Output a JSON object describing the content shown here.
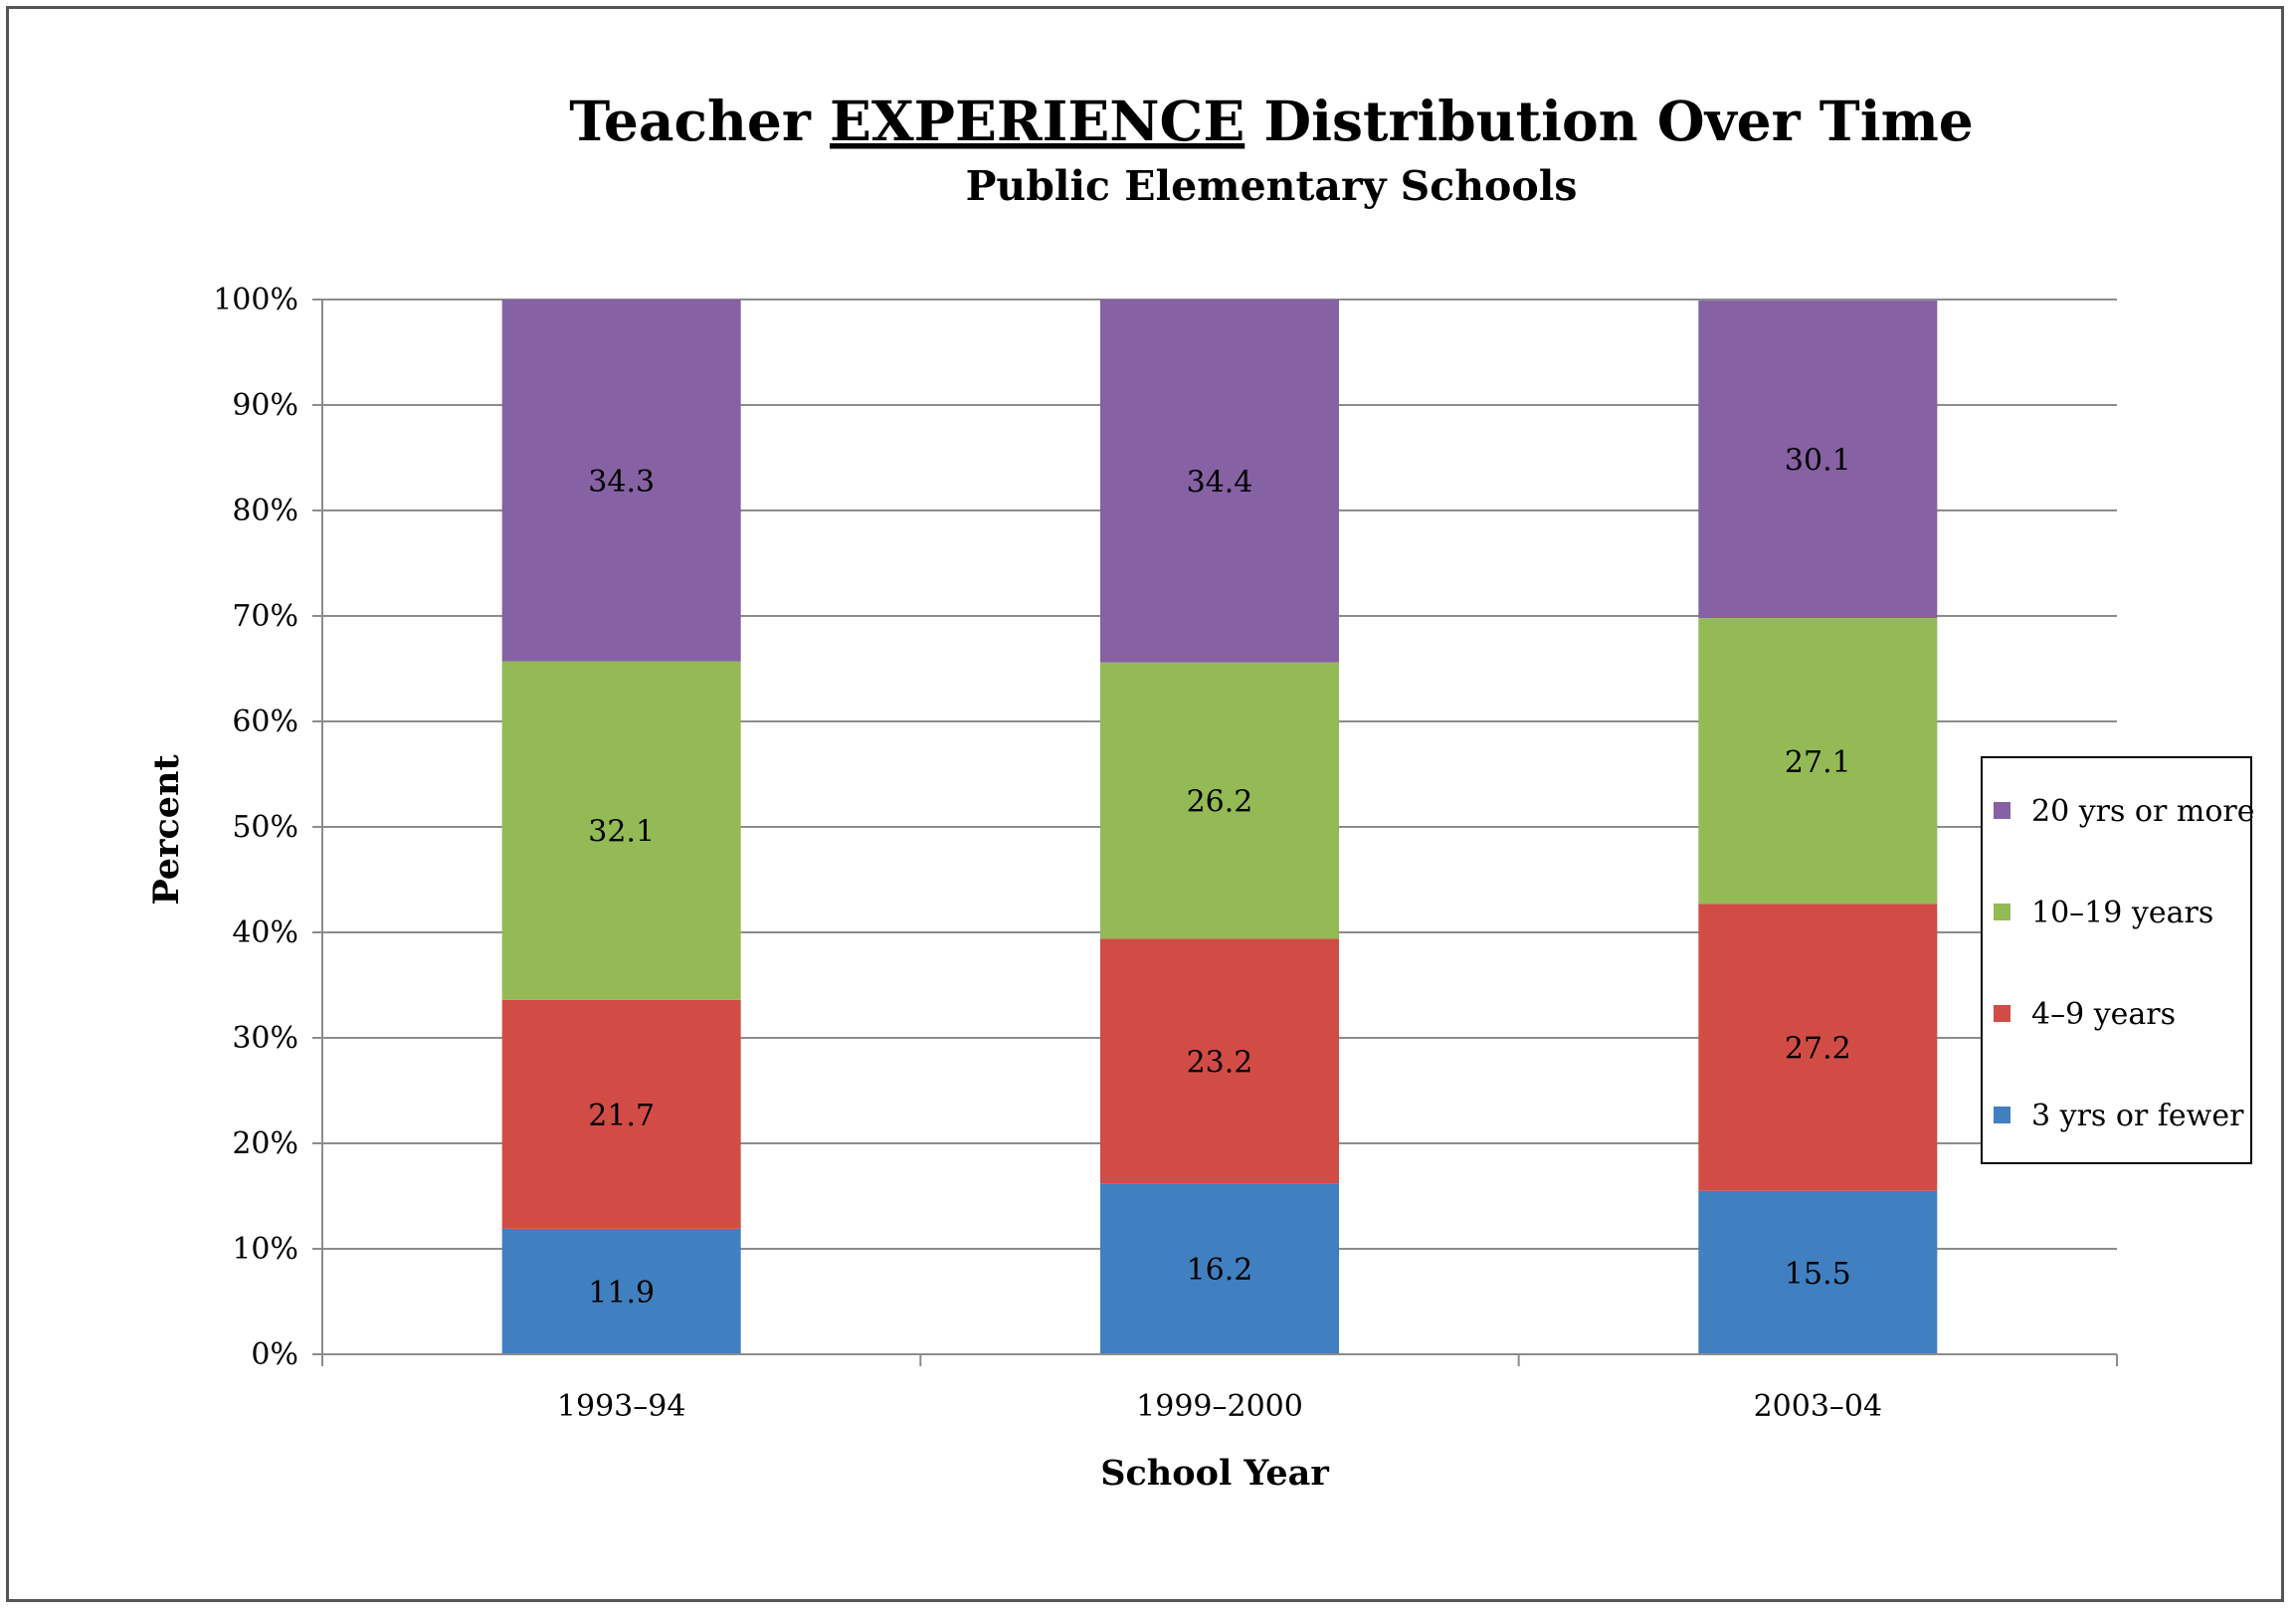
{
  "chart_data": {
    "type": "bar",
    "stacked": true,
    "title_prefix": "Teacher ",
    "title_emphasis": "EXPERIENCE",
    "title_suffix": " Distribution Over Time",
    "subtitle": "Public Elementary Schools",
    "xlabel": "School Year",
    "ylabel": "Percent",
    "categories": [
      "1993–94",
      "1999–2000",
      "2003–04"
    ],
    "ylim": [
      0,
      100
    ],
    "yticks": [
      "0%",
      "10%",
      "20%",
      "30%",
      "40%",
      "50%",
      "60%",
      "70%",
      "80%",
      "90%",
      "100%"
    ],
    "grid": true,
    "legend_position": "right",
    "series": [
      {
        "name": "3 yrs or fewer",
        "color": "#4080C0",
        "values": [
          11.9,
          16.2,
          15.5
        ]
      },
      {
        "name": "4–9 years",
        "color": "#D24C46",
        "values": [
          21.7,
          23.2,
          27.2
        ]
      },
      {
        "name": "10–19 years",
        "color": "#93BA55",
        "values": [
          32.1,
          26.2,
          27.1
        ]
      },
      {
        "name": "20 yrs or more",
        "color": "#8661A3",
        "values": [
          34.3,
          34.4,
          30.1
        ]
      }
    ]
  }
}
